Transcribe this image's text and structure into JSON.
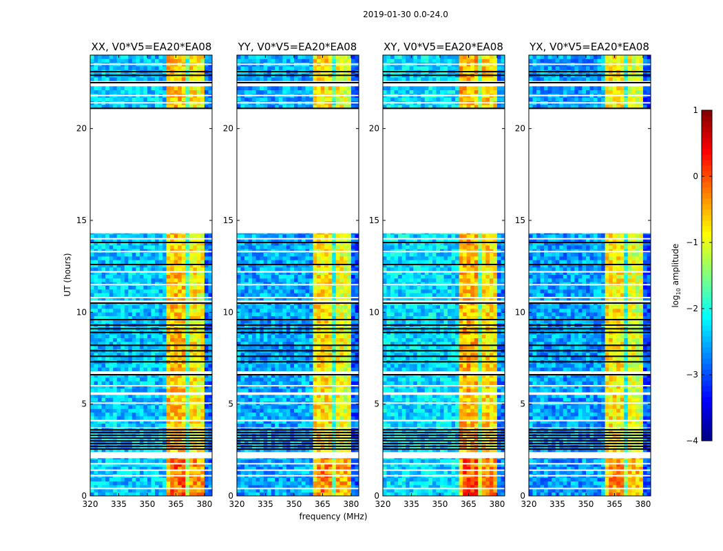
{
  "chart_data": {
    "type": "heatmap",
    "title": "2019-01-30 0.0-24.0",
    "xlabel": "frequency (MHz)",
    "ylabel": "UT (hours)",
    "xlim": [
      320,
      384
    ],
    "ylim": [
      0,
      24
    ],
    "xticks": [
      "320",
      "335",
      "350",
      "365",
      "380"
    ],
    "xtick_values": [
      320,
      335,
      350,
      365,
      380
    ],
    "yticks": [
      "0",
      "5",
      "10",
      "15",
      "20"
    ],
    "ytick_values": [
      0,
      5,
      10,
      15,
      20
    ],
    "colorbar": {
      "label": "log10 amplitude",
      "label_main": "log",
      "label_sub": "10",
      "label_rest": " amplitude",
      "range": [
        -4,
        1
      ],
      "ticks": [
        "−4",
        "−3",
        "−2",
        "−1",
        "0",
        "1"
      ],
      "tick_values": [
        -4,
        -3,
        -2,
        -1,
        0,
        1
      ],
      "colormap": "jet"
    },
    "data_time_segments": [
      [
        0,
        2.05
      ],
      [
        2.4,
        3.7
      ],
      [
        3.75,
        5.5
      ],
      [
        5.65,
        6.6
      ],
      [
        6.8,
        10.5
      ],
      [
        10.65,
        14.3
      ],
      [
        21.1,
        22.3
      ],
      [
        22.6,
        24
      ]
    ],
    "flagged_lines_hours": [
      2.55,
      2.7,
      2.85,
      3.0,
      3.15,
      3.3,
      3.45,
      3.6,
      6.6,
      7.3,
      7.6,
      7.9,
      8.2,
      8.9,
      9.1,
      9.3,
      9.6,
      10.5,
      13.8,
      12.6,
      21.1,
      22.5,
      22.9,
      23.1
    ],
    "white_gap_lines_hours": [
      0.4,
      1.1,
      1.4,
      1.75,
      4.1,
      5.05,
      6.0,
      10.8,
      11.5,
      12.2,
      13.3,
      14.0,
      21.4,
      21.8,
      23.5
    ],
    "frequency_bands": [
      {
        "range": [
          320,
          361
        ],
        "log_amplitude": -2.4
      },
      {
        "range": [
          361,
          365.5
        ],
        "log_amplitude": -0.6
      },
      {
        "range": [
          365.5,
          366.5
        ],
        "log_amplitude": -1.7
      },
      {
        "range": [
          366.5,
          370.5
        ],
        "log_amplitude": -0.6
      },
      {
        "range": [
          370.5,
          371.5
        ],
        "log_amplitude": -1.8
      },
      {
        "range": [
          371.5,
          375.5
        ],
        "log_amplitude": -0.8
      },
      {
        "range": [
          375.5,
          376.5
        ],
        "log_amplitude": -1.9
      },
      {
        "range": [
          376.5,
          381
        ],
        "log_amplitude": -0.9
      },
      {
        "range": [
          381,
          384
        ],
        "log_amplitude": -2.8
      }
    ],
    "panels": [
      {
        "title": "XX, V0*V5=EA20*EA08",
        "offset": 0.0
      },
      {
        "title": "YY, V0*V5=EA20*EA08",
        "offset": -0.15
      },
      {
        "title": "XY, V0*V5=EA20*EA08",
        "offset": 0.1
      },
      {
        "title": "YX, V0*V5=EA20*EA08",
        "offset": -0.2
      }
    ]
  }
}
